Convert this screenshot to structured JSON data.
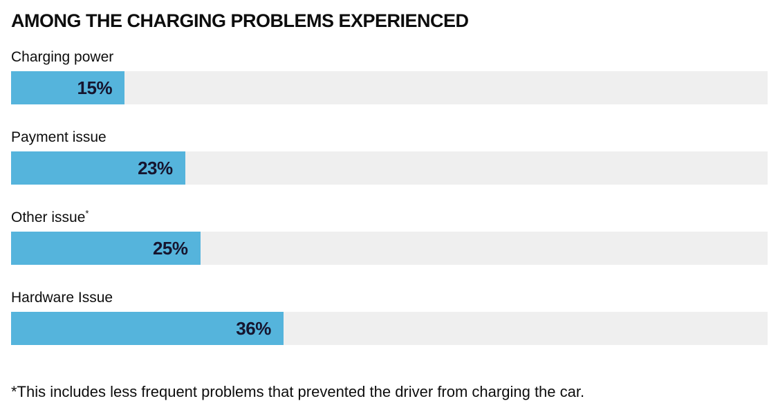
{
  "chart_data": {
    "type": "bar",
    "orientation": "horizontal",
    "title": "AMONG THE CHARGING PROBLEMS EXPERIENCED",
    "categories": [
      "Charging power",
      "Payment issue",
      "Other issue",
      "Hardware Issue"
    ],
    "superscripts": [
      "",
      "",
      "*",
      ""
    ],
    "values": [
      15,
      23,
      25,
      36
    ],
    "value_labels": [
      "15%",
      "23%",
      "25%",
      "36%"
    ],
    "xlim": [
      0,
      100
    ],
    "grid": false,
    "legend": "none",
    "footnote": "*This includes less frequent problems that prevented the driver from charging the car.",
    "colors": {
      "bar_fill": "#55b4dc",
      "bar_track": "#efefef",
      "value_text": "#16152f",
      "text": "#0d0d0d"
    }
  }
}
